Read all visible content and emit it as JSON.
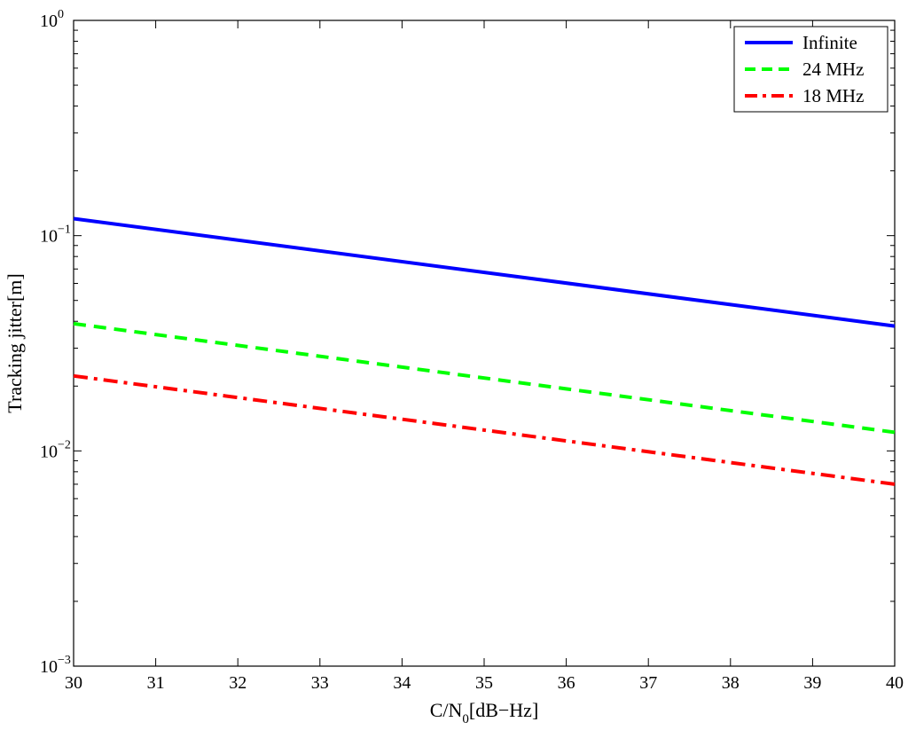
{
  "chart_data": {
    "type": "line",
    "title": "",
    "xlabel_main": "C/N",
    "xlabel_sub": "0",
    "xlabel_tail": "[dB−Hz]",
    "ylabel": "Tracking jitter[m]",
    "xlim": [
      30,
      40
    ],
    "ylim": [
      0.001,
      1
    ],
    "yscale": "log",
    "grid": false,
    "legend_position": "top-right",
    "x_ticks": [
      "30",
      "31",
      "32",
      "33",
      "34",
      "35",
      "36",
      "37",
      "38",
      "39",
      "40"
    ],
    "y_ticks": [
      {
        "value": 0.001,
        "base": "10",
        "exp": "−3"
      },
      {
        "value": 0.01,
        "base": "10",
        "exp": "−2"
      },
      {
        "value": 0.1,
        "base": "10",
        "exp": "−1"
      },
      {
        "value": 1,
        "base": "10",
        "exp": "0"
      }
    ],
    "series": [
      {
        "name": "Infinite",
        "color": "#0000ff",
        "style": "solid",
        "x": [
          30,
          40
        ],
        "values": [
          0.12,
          0.038
        ]
      },
      {
        "name": "24 MHz",
        "color": "#00ff00",
        "style": "dashed",
        "x": [
          30,
          40
        ],
        "values": [
          0.039,
          0.0122
        ]
      },
      {
        "name": "18 MHz",
        "color": "#ff0000",
        "style": "dashdot",
        "x": [
          30,
          40
        ],
        "values": [
          0.0223,
          0.007
        ]
      }
    ]
  }
}
